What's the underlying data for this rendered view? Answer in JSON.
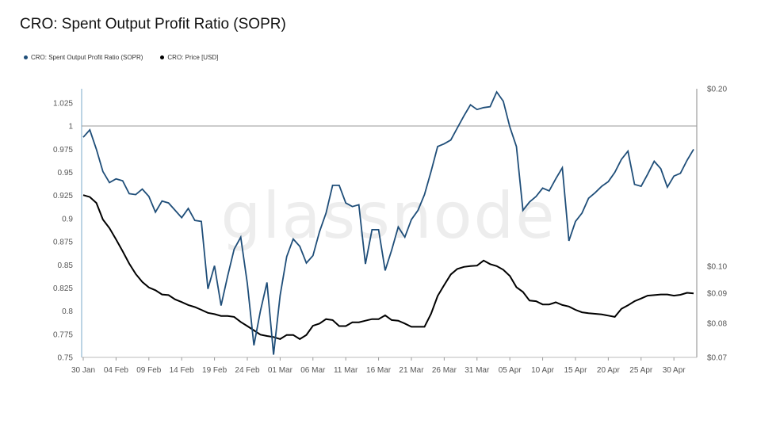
{
  "title": "CRO: Spent Output Profit Ratio (SOPR)",
  "watermark": "glassnode",
  "legend": [
    {
      "label": "CRO: Spent Output Profit Ratio (SOPR)",
      "color": "#1f4e79"
    },
    {
      "label": "CRO: Price [USD]",
      "color": "#000000"
    }
  ],
  "chart_data": {
    "type": "line",
    "title": "CRO: Spent Output Profit Ratio (SOPR)",
    "x_tick_labels": [
      "30 Jan",
      "04 Feb",
      "09 Feb",
      "14 Feb",
      "19 Feb",
      "24 Feb",
      "01 Mar",
      "06 Mar",
      "11 Mar",
      "16 Mar",
      "21 Mar",
      "26 Mar",
      "31 Mar",
      "05 Apr",
      "10 Apr",
      "15 Apr",
      "20 Apr",
      "25 Apr",
      "30 Apr"
    ],
    "x_tick_day_index": [
      0,
      5,
      10,
      15,
      20,
      25,
      30,
      35,
      40,
      45,
      50,
      55,
      60,
      65,
      70,
      75,
      80,
      85,
      90
    ],
    "left_axis": {
      "ticks": [
        "1.025",
        "1",
        "0.975",
        "0.95",
        "0.925",
        "0.9",
        "0.875",
        "0.85",
        "0.825",
        "0.8",
        "0.775",
        "0.75"
      ],
      "ylim": [
        0.75,
        1.04
      ]
    },
    "right_axis": {
      "ticks": [
        "$0.20",
        "$0.10",
        "$0.09",
        "$0.08",
        "$0.07"
      ],
      "tick_values": [
        0.2,
        0.1,
        0.09,
        0.08,
        0.07
      ],
      "scale": "log",
      "ylim": [
        0.07,
        0.2
      ]
    },
    "reference_line": 1,
    "series": [
      {
        "name": "CRO: Spent Output Profit Ratio (SOPR)",
        "axis": "left",
        "color": "#1f4e79",
        "values": [
          0.988,
          0.996,
          0.975,
          0.951,
          0.939,
          0.943,
          0.941,
          0.927,
          0.926,
          0.932,
          0.924,
          0.907,
          0.919,
          0.917,
          0.909,
          0.901,
          0.911,
          0.898,
          0.897,
          0.824,
          0.849,
          0.806,
          0.838,
          0.867,
          0.88,
          0.83,
          0.763,
          0.8,
          0.831,
          0.753,
          0.817,
          0.859,
          0.878,
          0.87,
          0.852,
          0.86,
          0.886,
          0.906,
          0.936,
          0.936,
          0.917,
          0.913,
          0.915,
          0.851,
          0.888,
          0.888,
          0.844,
          0.866,
          0.891,
          0.88,
          0.899,
          0.909,
          0.926,
          0.951,
          0.978,
          0.981,
          0.985,
          0.998,
          1.011,
          1.023,
          1.018,
          1.02,
          1.021,
          1.037,
          1.027,
          0.999,
          0.978,
          0.909,
          0.918,
          0.924,
          0.933,
          0.93,
          0.943,
          0.955,
          0.876,
          0.897,
          0.906,
          0.922,
          0.928,
          0.935,
          0.94,
          0.95,
          0.964,
          0.973,
          0.937,
          0.935,
          0.948,
          0.962,
          0.954,
          0.934,
          0.946,
          0.949,
          0.963,
          0.975
        ]
      },
      {
        "name": "CRO: Price [USD]",
        "axis": "right",
        "color": "#000000",
        "values": [
          0.132,
          0.131,
          0.128,
          0.12,
          0.116,
          0.111,
          0.106,
          0.101,
          0.097,
          0.094,
          0.092,
          0.091,
          0.0895,
          0.0893,
          0.0878,
          0.0869,
          0.0859,
          0.0852,
          0.0843,
          0.0833,
          0.0829,
          0.0823,
          0.0823,
          0.082,
          0.0804,
          0.0791,
          0.0778,
          0.0765,
          0.0761,
          0.0758,
          0.0752,
          0.0764,
          0.0764,
          0.0752,
          0.0764,
          0.0792,
          0.0799,
          0.0813,
          0.081,
          0.0791,
          0.0791,
          0.0803,
          0.0803,
          0.0808,
          0.0813,
          0.0813,
          0.0825,
          0.081,
          0.0808,
          0.0799,
          0.0789,
          0.0789,
          0.0789,
          0.083,
          0.089,
          0.0929,
          0.0968,
          0.0989,
          0.0997,
          0.1,
          0.1002,
          0.1022,
          0.1008,
          0.1,
          0.0986,
          0.0962,
          0.0921,
          0.0904,
          0.0874,
          0.0872,
          0.0861,
          0.0861,
          0.0868,
          0.0859,
          0.0854,
          0.0843,
          0.0835,
          0.0832,
          0.083,
          0.0828,
          0.0824,
          0.082,
          0.0846,
          0.0858,
          0.0872,
          0.0881,
          0.0891,
          0.0893,
          0.0895,
          0.0895,
          0.0891,
          0.0894,
          0.0901,
          0.0899
        ]
      }
    ],
    "grid": false
  }
}
